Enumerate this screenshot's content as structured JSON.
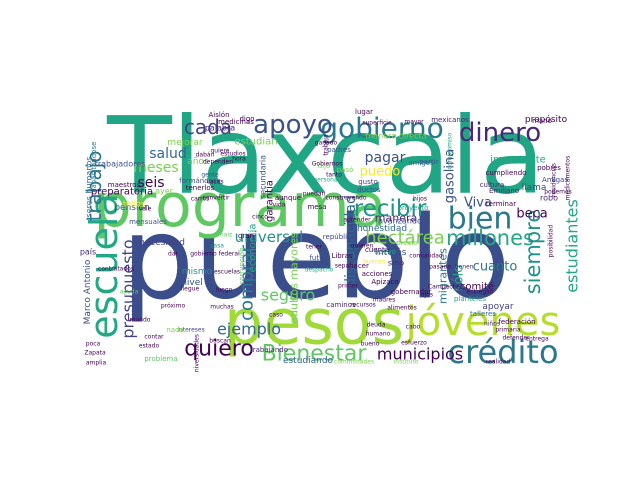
{
  "wordcloud": {
    "palette": [
      "#2a788e",
      "#22a884",
      "#7ad151",
      "#3b528b",
      "#440154",
      "#414487",
      "#fde725",
      "#21918c",
      "#5ec962",
      "#482878"
    ],
    "words": [
      {
        "text": "Tlaxcala",
        "color": "#21a685"
      },
      {
        "text": "pueblo",
        "color": "#3b4e8c"
      },
      {
        "text": "programa",
        "color": "#5ec962"
      },
      {
        "text": "pesos",
        "color": "#a0da39"
      },
      {
        "text": "jóvenes",
        "color": "#b5de2b"
      },
      {
        "text": "crédito",
        "color": "#2a788e"
      },
      {
        "text": "escuela",
        "color": "#22a884"
      },
      {
        "text": "bien",
        "color": "#2a788e"
      },
      {
        "text": "gobierno",
        "color": "#2a788e"
      },
      {
        "text": "apoyo",
        "color": "#3b528b"
      },
      {
        "text": "dinero",
        "color": "#482878"
      },
      {
        "text": "cada",
        "color": "#414487"
      },
      {
        "text": "trabajo",
        "color": "#2a788e"
      },
      {
        "text": "quiero",
        "color": "#440154"
      },
      {
        "text": "Bienestar",
        "color": "#5ec962"
      },
      {
        "text": "millones",
        "color": "#22a884"
      },
      {
        "text": "recibir",
        "color": "#21918c"
      },
      {
        "text": "siempre",
        "color": "#21918c"
      },
      {
        "text": "estudiantes",
        "color": "#22a884"
      },
      {
        "text": "discapacidad",
        "color": "#31688e"
      },
      {
        "text": "hectárea",
        "color": "#7ad151"
      },
      {
        "text": "municipios",
        "color": "#440154"
      },
      {
        "text": "presupuesto",
        "color": "#414487"
      },
      {
        "text": "comprar",
        "color": "#2a788e"
      },
      {
        "text": "universal",
        "color": "#21918c"
      },
      {
        "text": "ejemplo",
        "color": "#31688e"
      },
      {
        "text": "seguro",
        "color": "#5ec962"
      },
      {
        "text": "pagar",
        "color": "#3b528b"
      },
      {
        "text": "salud",
        "color": "#31688e"
      },
      {
        "text": "meses",
        "color": "#7ad151"
      },
      {
        "text": "seis",
        "color": "#440154"
      },
      {
        "text": "beca",
        "color": "#440154"
      },
      {
        "text": "Viva",
        "color": "#3b528b"
      },
      {
        "text": "puedo",
        "color": "#fde725"
      },
      {
        "text": "gasolina",
        "color": "#3b528b"
      },
      {
        "text": "cuanto",
        "color": "#2a788e"
      },
      {
        "text": "sólo",
        "color": "#22a884"
      },
      {
        "text": "manera",
        "color": "#482878"
      },
      {
        "text": "preparatoria",
        "color": "#440154"
      },
      {
        "text": "pensión",
        "color": "#3b528b"
      },
      {
        "text": "mejorar",
        "color": "#7ad151"
      },
      {
        "text": "estudian",
        "color": "#7ad151"
      },
      {
        "text": "palabra",
        "color": "#482878"
      },
      {
        "text": "garantía",
        "color": "#440154"
      },
      {
        "text": "economía",
        "color": "#22a884"
      },
      {
        "text": "adultos mayores",
        "color": "#7ad151"
      },
      {
        "text": "estudiando",
        "color": "#31688e"
      },
      {
        "text": "necesidad",
        "color": "#414487"
      },
      {
        "text": "mismo",
        "color": "#21918c"
      },
      {
        "text": "nivel",
        "color": "#3b528b"
      },
      {
        "text": "interés",
        "color": "#3b528b"
      },
      {
        "text": "migrantes",
        "color": "#2a788e"
      },
      {
        "text": "comité",
        "color": "#440154"
      },
      {
        "text": "apoyar",
        "color": "#414487"
      },
      {
        "text": "importante",
        "color": "#22a884"
      },
      {
        "text": "propósito",
        "color": "#440154"
      },
      {
        "text": "cumpliendo",
        "color": "#440154"
      },
      {
        "text": "Emiliano",
        "color": "#482878"
      },
      {
        "text": "llama",
        "color": "#414487"
      },
      {
        "text": "robo",
        "color": "#482878"
      },
      {
        "text": "honestidad",
        "color": "#31688e"
      },
      {
        "text": "avanzando",
        "color": "#414487"
      },
      {
        "text": "Marco Antonio",
        "color": "#3b528b"
      },
      {
        "text": "seres humanos",
        "color": "#31688e"
      },
      {
        "text": "capacitándose",
        "color": "#2a788e"
      },
      {
        "text": "trabajadores",
        "color": "#3b528b"
      },
      {
        "text": "maestros",
        "color": "#440154"
      },
      {
        "text": "ayer",
        "color": "#7ad151"
      },
      {
        "text": "años",
        "color": "#7ad151"
      },
      {
        "text": "gusto",
        "color": "#414487"
      },
      {
        "text": "ductos",
        "color": "#3b528b"
      },
      {
        "text": "partir",
        "color": "#3b528b"
      },
      {
        "text": "amigos",
        "color": "#31688e"
      },
      {
        "text": "cultura",
        "color": "#482878"
      },
      {
        "text": "pobres",
        "color": "#440154"
      },
      {
        "text": "Amigas",
        "color": "#414487"
      },
      {
        "text": "mexicanos",
        "color": "#482878"
      },
      {
        "text": "medicinas",
        "color": "#440154"
      },
      {
        "text": "Aislón",
        "color": "#440154"
      },
      {
        "text": "padres",
        "color": "#3b528b"
      },
      {
        "text": "futuro",
        "color": "#3b528b"
      },
      {
        "text": "república",
        "color": "#414487"
      },
      {
        "text": "proyecto",
        "color": "#22a884"
      },
      {
        "text": "terminar",
        "color": "#440154"
      },
      {
        "text": "gobernador",
        "color": "#440154"
      },
      {
        "text": "caminos",
        "color": "#482878"
      },
      {
        "text": "talleres",
        "color": "#31688e"
      },
      {
        "text": "federación",
        "color": "#440154"
      },
      {
        "text": "defender",
        "color": "#440154"
      },
      {
        "text": "primaria",
        "color": "#440154"
      },
      {
        "text": "planteles",
        "color": "#22a884"
      },
      {
        "text": "entregan",
        "color": "#440154"
      },
      {
        "text": "pasado",
        "color": "#440154"
      },
      {
        "text": "acciones",
        "color": "#440154"
      },
      {
        "text": "Apizaco",
        "color": "#440154"
      },
      {
        "text": "buscan",
        "color": "#440154"
      },
      {
        "text": "trabajando",
        "color": "#482878"
      },
      {
        "text": "problema",
        "color": "#5ec962"
      },
      {
        "text": "amplia",
        "color": "#440154"
      },
      {
        "text": "Zapata",
        "color": "#440154"
      },
      {
        "text": "poca",
        "color": "#440154"
      },
      {
        "text": "comunidades",
        "color": "#7ad151"
      },
      {
        "text": "instituto",
        "color": "#7ad151"
      },
      {
        "text": "realidad",
        "color": "#440154"
      },
      {
        "text": "entrega",
        "color": "#440154"
      },
      {
        "text": "superficie",
        "color": "#440154"
      },
      {
        "text": "compromiso",
        "color": "#22a884"
      },
      {
        "text": "formándose",
        "color": "#3b528b"
      },
      {
        "text": "tenerlos",
        "color": "#440154"
      },
      {
        "text": "carros",
        "color": "#440154"
      },
      {
        "text": "mensuales",
        "color": "#3b528b"
      },
      {
        "text": "intereses",
        "color": "#414487"
      },
      {
        "text": "sino",
        "color": "#482878"
      },
      {
        "text": "gente",
        "color": "#3b528b"
      },
      {
        "text": "país",
        "color": "#482878"
      },
      {
        "text": "todos",
        "color": "#fde725"
      },
      {
        "text": "mundo",
        "color": "#440154"
      },
      {
        "text": "casa",
        "color": "#21918c"
      },
      {
        "text": "digo",
        "color": "#440154"
      },
      {
        "text": "estudios",
        "color": "#440154"
      },
      {
        "text": "dijo",
        "color": "#7ad151"
      },
      {
        "text": "aunque",
        "color": "#440154"
      },
      {
        "text": "corrupción",
        "color": "#5ec962"
      },
      {
        "text": "secundaria",
        "color": "#3b528b"
      },
      {
        "text": "Libras",
        "color": "#440154"
      },
      {
        "text": "cabo",
        "color": "#440154"
      },
      {
        "text": "deuda",
        "color": "#440154"
      },
      {
        "text": "humano",
        "color": "#440154"
      },
      {
        "text": "niños",
        "color": "#482878"
      },
      {
        "text": "mayor",
        "color": "#440154"
      },
      {
        "text": "mano",
        "color": "#440154"
      },
      {
        "text": "medicamentos",
        "color": "#440154"
      },
      {
        "text": "residencias",
        "color": "#440154"
      },
      {
        "text": "posibilidad",
        "color": "#440154"
      },
      {
        "text": "manera directa",
        "color": "#7ad151"
      },
      {
        "text": "vacas",
        "color": "#440154"
      },
      {
        "text": "precio",
        "color": "#7ad151"
      },
      {
        "text": "cinco",
        "color": "#440154"
      },
      {
        "text": "dar",
        "color": "#440154"
      },
      {
        "text": "contratados",
        "color": "#440154"
      },
      {
        "text": "próximo",
        "color": "#440154"
      },
      {
        "text": "llegue",
        "color": "#440154"
      },
      {
        "text": "nada",
        "color": "#7ad151"
      },
      {
        "text": "universidades",
        "color": "#440154"
      },
      {
        "text": "despacho",
        "color": "#22a884"
      },
      {
        "text": "hacer",
        "color": "#440154"
      },
      {
        "text": "podemos",
        "color": "#440154"
      },
      {
        "text": "pasó",
        "color": "#7ad151"
      },
      {
        "text": "vida",
        "color": "#440154"
      },
      {
        "text": "mesa",
        "color": "#440154"
      },
      {
        "text": "nuevo",
        "color": "#22a884"
      },
      {
        "text": "tienen",
        "color": "#482878"
      },
      {
        "text": "caso",
        "color": "#440154"
      },
      {
        "text": "gran",
        "color": "#440154"
      },
      {
        "text": "buenas",
        "color": "#fde725"
      },
      {
        "text": "cuenta",
        "color": "#440154"
      },
      {
        "text": "comunidad",
        "color": "#440154"
      },
      {
        "text": "Campeche",
        "color": "#440154"
      },
      {
        "text": "ganado",
        "color": "#440154"
      },
      {
        "text": "trabaja",
        "color": "#440154"
      },
      {
        "text": "Gobiernos",
        "color": "#440154"
      },
      {
        "text": "muchas",
        "color": "#440154"
      },
      {
        "text": "tanto",
        "color": "#440154"
      },
      {
        "text": "personas",
        "color": "#22a884"
      },
      {
        "text": "lugar",
        "color": "#440154"
      },
      {
        "text": "sepa",
        "color": "#440154"
      },
      {
        "text": "quiere",
        "color": "#440154"
      },
      {
        "text": "hora",
        "color": "#440154"
      },
      {
        "text": "dependen",
        "color": "#440154"
      },
      {
        "text": "gobierno federal",
        "color": "#440154"
      },
      {
        "text": "construyendo",
        "color": "#440154"
      },
      {
        "text": "alimentos",
        "color": "#440154"
      },
      {
        "text": "recursos",
        "color": "#440154"
      },
      {
        "text": "escuelas",
        "color": "#440154"
      },
      {
        "text": "primer",
        "color": "#440154"
      },
      {
        "text": "madres",
        "color": "#440154"
      },
      {
        "text": "dabán",
        "color": "#440154"
      },
      {
        "text": "convertir",
        "color": "#440154"
      },
      {
        "text": "maíz",
        "color": "#5ec962"
      },
      {
        "text": "vale",
        "color": "#440154"
      },
      {
        "text": "ayuda",
        "color": "#5ec962"
      },
      {
        "text": "contar",
        "color": "#440154"
      },
      {
        "text": "estado",
        "color": "#440154"
      },
      {
        "text": "tener",
        "color": "#440154"
      },
      {
        "text": "ojos",
        "color": "#440154"
      },
      {
        "text": "puedan",
        "color": "#440154"
      },
      {
        "text": "esfuerzo",
        "color": "#440154"
      },
      {
        "text": "luego",
        "color": "#440154"
      },
      {
        "text": "bueno",
        "color": "#440154"
      },
      {
        "text": "aprender",
        "color": "#440154"
      },
      {
        "text": "quieren",
        "color": "#440154"
      },
      {
        "text": "hijos",
        "color": "#440154"
      }
    ]
  }
}
